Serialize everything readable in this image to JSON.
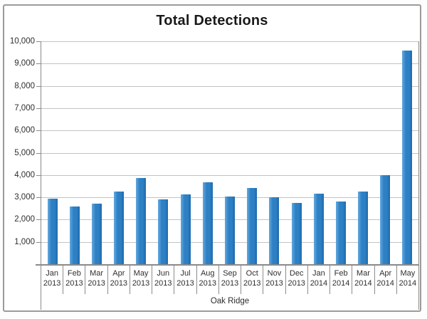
{
  "chart_data": {
    "type": "bar",
    "title": "Total Detections",
    "xlabel": "Oak Ridge",
    "ylabel": "",
    "ylim": [
      0,
      10000
    ],
    "ytick_values": [
      1000,
      2000,
      3000,
      4000,
      5000,
      6000,
      7000,
      8000,
      9000,
      10000
    ],
    "ytick_labels": [
      "1,000",
      "2,000",
      "3,000",
      "4,000",
      "5,000",
      "6,000",
      "7,000",
      "8,000",
      "9,000",
      "10,000"
    ],
    "categories": [
      [
        "Jan",
        "2013"
      ],
      [
        "Feb",
        "2013"
      ],
      [
        "Mar",
        "2013"
      ],
      [
        "Apr",
        "2013"
      ],
      [
        "May",
        "2013"
      ],
      [
        "Jun",
        "2013"
      ],
      [
        "Jul",
        "2013"
      ],
      [
        "Aug",
        "2013"
      ],
      [
        "Sep",
        "2013"
      ],
      [
        "Oct",
        "2013"
      ],
      [
        "Nov",
        "2013"
      ],
      [
        "Dec",
        "2013"
      ],
      [
        "Jan",
        "2014"
      ],
      [
        "Feb",
        "2014"
      ],
      [
        "Mar",
        "2014"
      ],
      [
        "Apr",
        "2014"
      ],
      [
        "May",
        "2014"
      ]
    ],
    "values": [
      2950,
      2580,
      2730,
      3260,
      3870,
      2900,
      3130,
      3680,
      3050,
      3430,
      2990,
      2740,
      3170,
      2800,
      3250,
      3980,
      9600
    ],
    "grid": "horizontal",
    "legend": "none"
  },
  "colors": {
    "bar_highlight": "#64a9de",
    "bar_fill": "#2e80c4",
    "bar_shadow": "#1d6aad",
    "gridline": "#c3c3c3",
    "axis_line": "#8a8a8a",
    "label_text": "#2e2e2e",
    "title_text": "#1a1a1a",
    "frame_border": "#9b9b9b"
  }
}
